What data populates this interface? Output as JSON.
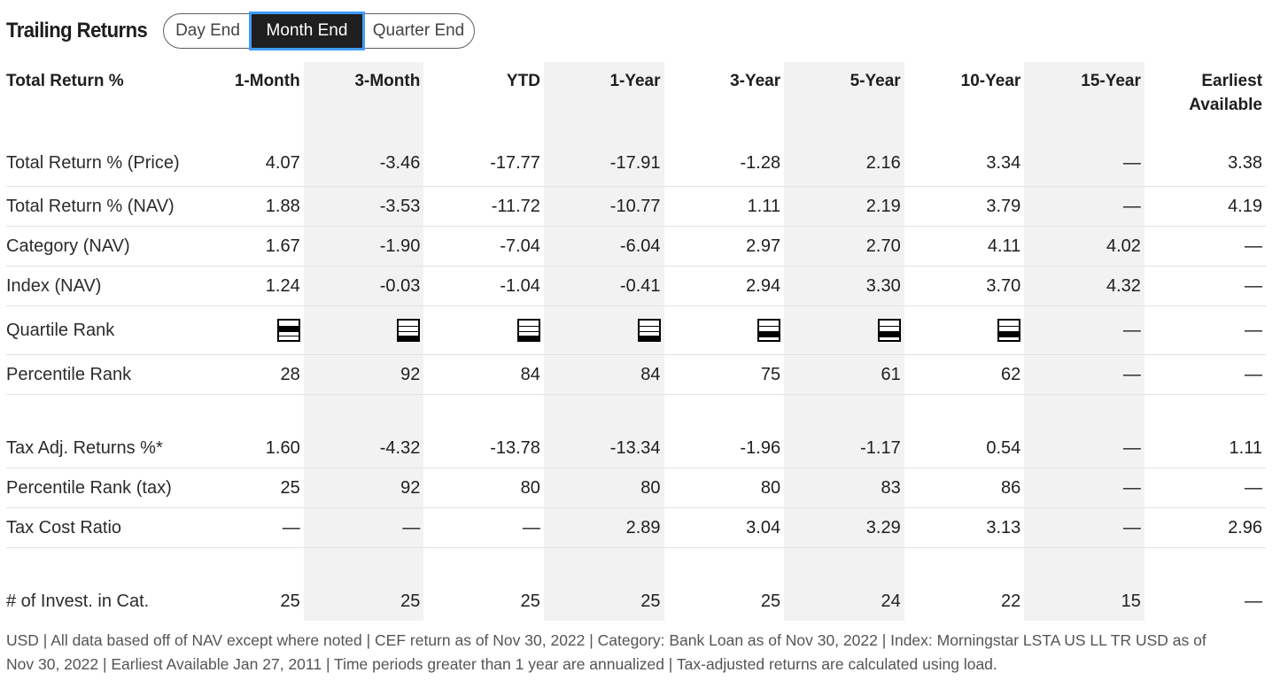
{
  "header": {
    "title": "Trailing Returns",
    "toggle": [
      "Day End",
      "Month End",
      "Quarter End"
    ],
    "selected": "Month End"
  },
  "table": {
    "columns": [
      "Total Return %",
      "1-Month",
      "3-Month",
      "YTD",
      "1-Year",
      "3-Year",
      "5-Year",
      "10-Year",
      "15-Year",
      "Earliest Available"
    ],
    "rows": [
      {
        "label": "Total Return % (Price)",
        "values": [
          "4.07",
          "-3.46",
          "-17.77",
          "-17.91",
          "-1.28",
          "2.16",
          "3.34",
          "—",
          "3.38"
        ]
      },
      {
        "label": "Total Return % (NAV)",
        "values": [
          "1.88",
          "-3.53",
          "-11.72",
          "-10.77",
          "1.11",
          "2.19",
          "3.79",
          "—",
          "4.19"
        ]
      },
      {
        "label": "Category (NAV)",
        "values": [
          "1.67",
          "-1.90",
          "-7.04",
          "-6.04",
          "2.97",
          "2.70",
          "4.11",
          "4.02",
          "—"
        ]
      },
      {
        "label": "Index (NAV)",
        "values": [
          "1.24",
          "-0.03",
          "-1.04",
          "-0.41",
          "2.94",
          "3.30",
          "3.70",
          "4.32",
          "—"
        ]
      },
      {
        "label": "Quartile Rank",
        "quartiles": [
          2,
          4,
          4,
          4,
          3,
          3,
          3
        ],
        "values": [
          "",
          "",
          "",
          "",
          "",
          "",
          "",
          "—",
          "—"
        ]
      },
      {
        "label": "Percentile Rank",
        "values": [
          "28",
          "92",
          "84",
          "84",
          "75",
          "61",
          "62",
          "—",
          "—"
        ]
      },
      {
        "label": "Tax Adj. Returns %*",
        "values": [
          "1.60",
          "-4.32",
          "-13.78",
          "-13.34",
          "-1.96",
          "-1.17",
          "0.54",
          "—",
          "1.11"
        ]
      },
      {
        "label": "Percentile Rank (tax)",
        "values": [
          "25",
          "92",
          "80",
          "80",
          "80",
          "83",
          "86",
          "—",
          "—"
        ]
      },
      {
        "label": "Tax Cost Ratio",
        "values": [
          "—",
          "—",
          "—",
          "2.89",
          "3.04",
          "3.29",
          "3.13",
          "—",
          "2.96"
        ]
      },
      {
        "label": "# of Invest. in Cat.",
        "values": [
          "25",
          "25",
          "25",
          "25",
          "25",
          "24",
          "22",
          "15",
          "—"
        ]
      }
    ]
  },
  "footer": "USD | All data based off of NAV except where noted | CEF return as of Nov 30, 2022 |  Category: Bank Loan as of Nov 30, 2022 |  Index: Morningstar LSTA US LL TR USD as of Nov 30, 2022 |  Earliest Available Jan 27, 2011 | Time periods greater than 1 year are annualized  | Tax-adjusted returns are calculated using load.",
  "colors": {
    "shade": "#f2f2f2",
    "selected_bg": "#1f1f1f",
    "focus_ring": "#3f9cff"
  }
}
